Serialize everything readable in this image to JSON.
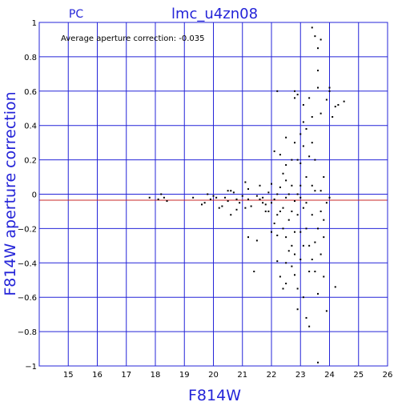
{
  "chart_data": {
    "type": "scatter",
    "instrument_label": "PC",
    "title": "lmc_u4zn08",
    "annotation": "Average aperture correction:  -0.035",
    "xlabel": "F814W",
    "ylabel": "F814W aperture correction",
    "xlim": [
      14,
      26
    ],
    "ylim": [
      -1,
      1
    ],
    "xticks": [
      15,
      16,
      17,
      18,
      19,
      20,
      21,
      22,
      23,
      24,
      25,
      26
    ],
    "yticks": [
      -1,
      -0.8,
      -0.6,
      -0.4,
      -0.2,
      0,
      0.2,
      0.4,
      0.6,
      0.8,
      1
    ],
    "ytick_labels": [
      "−1",
      "−0.8",
      "−0.6",
      "−0.4",
      "−0.2",
      "0",
      "0.2",
      "0.4",
      "0.6",
      "0.8",
      "1"
    ],
    "grid": true,
    "reference_lines": {
      "zero": 0,
      "average": -0.035
    },
    "colors": {
      "axes": "#2424d8",
      "grid": "#2424d8",
      "average_line": "#c82828",
      "points": "#000000"
    },
    "points": [
      [
        17.8,
        -0.02
      ],
      [
        18.1,
        -0.03
      ],
      [
        18.2,
        0.0
      ],
      [
        18.3,
        -0.02
      ],
      [
        18.4,
        -0.04
      ],
      [
        19.3,
        -0.02
      ],
      [
        19.6,
        -0.06
      ],
      [
        19.7,
        -0.05
      ],
      [
        19.8,
        0.0
      ],
      [
        19.9,
        -0.03
      ],
      [
        20.0,
        -0.01
      ],
      [
        20.1,
        -0.02
      ],
      [
        20.2,
        -0.08
      ],
      [
        20.3,
        -0.07
      ],
      [
        20.4,
        -0.02
      ],
      [
        20.5,
        0.02
      ],
      [
        20.5,
        -0.04
      ],
      [
        20.6,
        -0.12
      ],
      [
        20.6,
        0.02
      ],
      [
        20.7,
        0.01
      ],
      [
        20.8,
        -0.03
      ],
      [
        20.8,
        -0.09
      ],
      [
        20.9,
        -0.05
      ],
      [
        21.0,
        -0.01
      ],
      [
        21.1,
        0.07
      ],
      [
        21.1,
        -0.08
      ],
      [
        21.2,
        -0.03
      ],
      [
        21.2,
        0.03
      ],
      [
        21.3,
        -0.07
      ],
      [
        21.4,
        -0.45
      ],
      [
        21.5,
        -0.27
      ],
      [
        21.5,
        -0.01
      ],
      [
        21.6,
        -0.03
      ],
      [
        21.6,
        0.05
      ],
      [
        21.7,
        -0.05
      ],
      [
        21.7,
        -0.02
      ],
      [
        21.8,
        -0.06
      ],
      [
        21.8,
        -0.1
      ],
      [
        21.9,
        0.01
      ],
      [
        21.9,
        -0.1
      ],
      [
        21.2,
        -0.25
      ],
      [
        22.0,
        0.06
      ],
      [
        22.0,
        -0.05
      ],
      [
        22.0,
        -0.22
      ],
      [
        22.1,
        0.25
      ],
      [
        22.1,
        -0.03
      ],
      [
        22.1,
        -0.17
      ],
      [
        22.2,
        0.0
      ],
      [
        22.2,
        -0.12
      ],
      [
        22.2,
        -0.24
      ],
      [
        22.2,
        -0.39
      ],
      [
        22.2,
        0.6
      ],
      [
        22.3,
        -0.48
      ],
      [
        22.3,
        -0.1
      ],
      [
        22.3,
        0.04
      ],
      [
        22.3,
        0.23
      ],
      [
        22.4,
        -0.55
      ],
      [
        22.4,
        -0.2
      ],
      [
        22.4,
        -0.08
      ],
      [
        22.4,
        0.12
      ],
      [
        22.5,
        -0.4
      ],
      [
        22.5,
        -0.25
      ],
      [
        22.5,
        -0.02
      ],
      [
        22.5,
        0.08
      ],
      [
        22.5,
        0.17
      ],
      [
        22.5,
        0.33
      ],
      [
        22.5,
        -0.52
      ],
      [
        22.6,
        -0.33
      ],
      [
        22.6,
        -0.15
      ],
      [
        22.6,
        0.0
      ],
      [
        22.7,
        -0.3
      ],
      [
        22.7,
        -0.1
      ],
      [
        22.7,
        0.05
      ],
      [
        22.7,
        0.2
      ],
      [
        22.7,
        -0.42
      ],
      [
        22.8,
        -0.04
      ],
      [
        22.8,
        0.3
      ],
      [
        22.8,
        0.56
      ],
      [
        22.8,
        0.6
      ],
      [
        22.8,
        -0.22
      ],
      [
        22.8,
        -0.35
      ],
      [
        22.8,
        -0.47
      ],
      [
        22.9,
        -0.12
      ],
      [
        22.9,
        0.2
      ],
      [
        22.9,
        0.58
      ],
      [
        22.9,
        -0.55
      ],
      [
        22.9,
        -0.67
      ],
      [
        22.9,
        0.0
      ],
      [
        23.0,
        -0.22
      ],
      [
        23.0,
        0.05
      ],
      [
        23.0,
        0.35
      ],
      [
        23.0,
        -0.38
      ],
      [
        23.0,
        -0.02
      ],
      [
        23.0,
        0.18
      ],
      [
        23.1,
        0.42
      ],
      [
        23.1,
        -0.08
      ],
      [
        23.1,
        -0.3
      ],
      [
        23.1,
        0.52
      ],
      [
        23.1,
        -0.6
      ],
      [
        23.1,
        0.28
      ],
      [
        23.2,
        0.38
      ],
      [
        23.2,
        -0.2
      ],
      [
        23.2,
        -0.05
      ],
      [
        23.2,
        0.1
      ],
      [
        23.2,
        -0.72
      ],
      [
        23.3,
        -0.77
      ],
      [
        23.3,
        -0.45
      ],
      [
        23.3,
        0.22
      ],
      [
        23.3,
        -0.3
      ],
      [
        23.3,
        0.56
      ],
      [
        23.4,
        -0.12
      ],
      [
        23.4,
        0.05
      ],
      [
        23.4,
        0.45
      ],
      [
        23.4,
        0.97
      ],
      [
        23.4,
        -0.38
      ],
      [
        23.4,
        0.3
      ],
      [
        23.5,
        0.92
      ],
      [
        23.5,
        0.02
      ],
      [
        23.5,
        -0.28
      ],
      [
        23.5,
        -0.45
      ],
      [
        23.5,
        0.2
      ],
      [
        23.6,
        0.72
      ],
      [
        23.6,
        0.62
      ],
      [
        23.6,
        0.85
      ],
      [
        23.6,
        -0.2
      ],
      [
        23.6,
        -0.58
      ],
      [
        23.6,
        -0.98
      ],
      [
        23.7,
        0.9
      ],
      [
        23.7,
        -0.35
      ],
      [
        23.7,
        -0.1
      ],
      [
        23.7,
        0.47
      ],
      [
        23.7,
        0.02
      ],
      [
        23.8,
        -0.25
      ],
      [
        23.8,
        -0.15
      ],
      [
        23.8,
        0.1
      ],
      [
        23.8,
        -0.48
      ],
      [
        23.9,
        0.55
      ],
      [
        23.9,
        -0.05
      ],
      [
        23.9,
        -0.68
      ],
      [
        24.0,
        0.62
      ],
      [
        24.0,
        0.6
      ],
      [
        24.0,
        -0.02
      ],
      [
        24.1,
        0.45
      ],
      [
        24.2,
        0.51
      ],
      [
        24.2,
        -0.54
      ],
      [
        24.3,
        0.52
      ],
      [
        24.5,
        0.54
      ]
    ]
  }
}
